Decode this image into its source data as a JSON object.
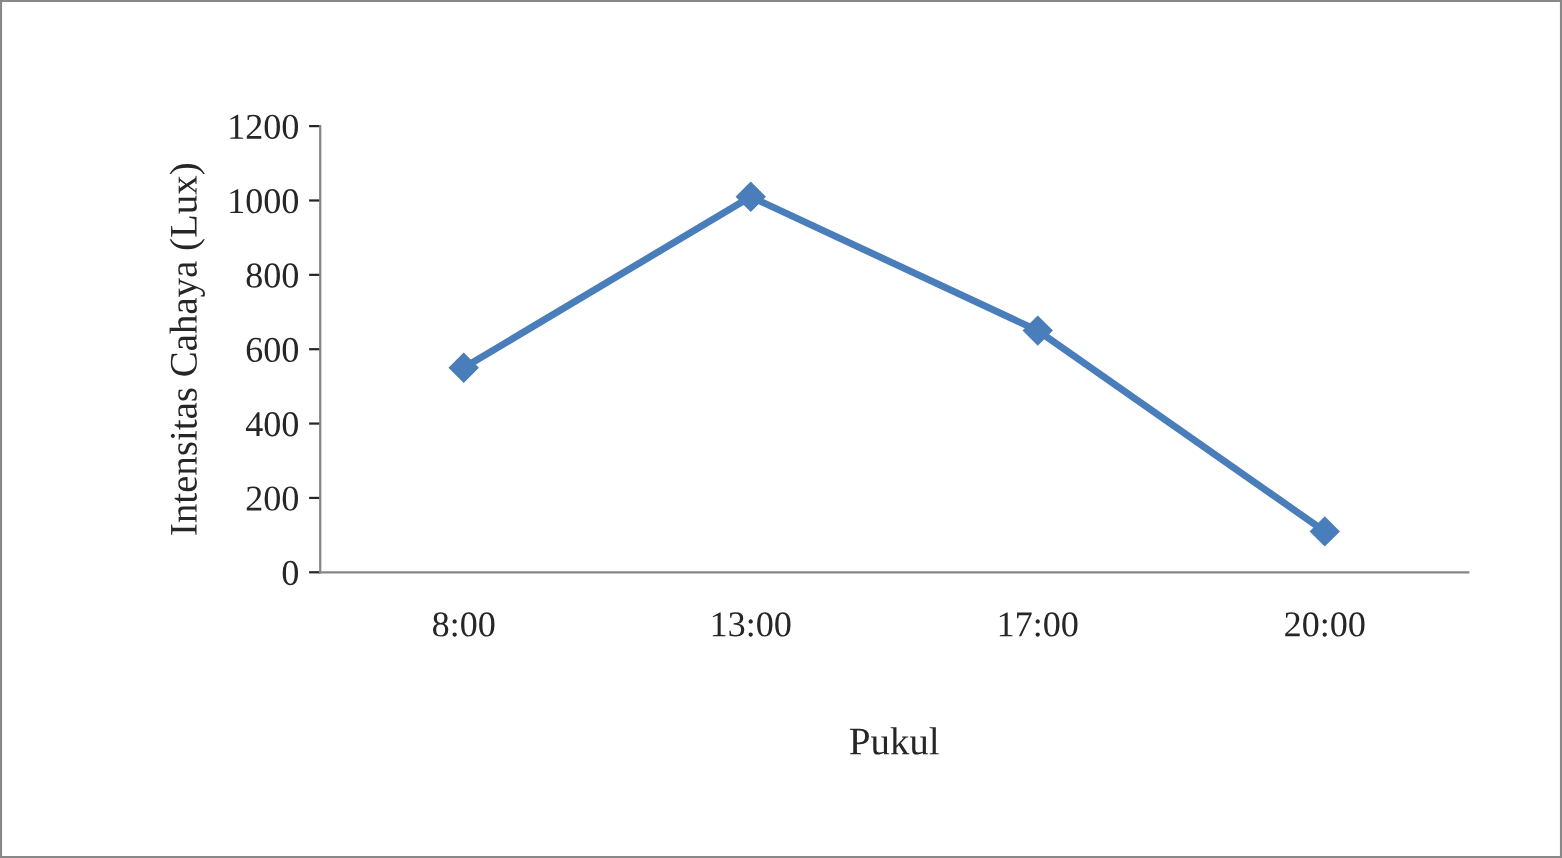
{
  "chart_data": {
    "type": "line",
    "xlabel": "Pukul",
    "ylabel": "Intensitas Cahaya (Lux)",
    "categories": [
      "8:00",
      "13:00",
      "17:00",
      "20:00"
    ],
    "series": [
      {
        "color": "#4a7ebb",
        "values": [
          550,
          1010,
          650,
          110
        ]
      }
    ],
    "ylim": [
      0,
      1200
    ],
    "yticks": [
      0,
      200,
      400,
      600,
      800,
      1000,
      1200
    ],
    "marker": "diamond",
    "line_style": "solid",
    "grid": false
  }
}
